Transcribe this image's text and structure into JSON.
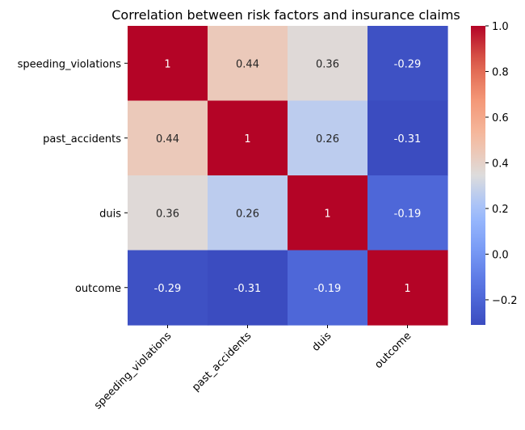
{
  "chart_data": {
    "type": "heatmap",
    "title": "Correlation between risk factors and insurance claims",
    "xlabel": "",
    "ylabel": "",
    "row_labels": [
      "speeding_violations",
      "past_accidents",
      "duis",
      "outcome"
    ],
    "col_labels": [
      "speeding_violations",
      "past_accidents",
      "duis",
      "outcome"
    ],
    "values": [
      [
        1,
        0.44,
        0.36,
        -0.29
      ],
      [
        0.44,
        1,
        0.26,
        -0.31
      ],
      [
        0.36,
        0.26,
        1,
        -0.19
      ],
      [
        -0.29,
        -0.31,
        -0.19,
        1
      ]
    ],
    "annotations": [
      [
        "1",
        "0.44",
        "0.36",
        "-0.29"
      ],
      [
        "0.44",
        "1",
        "0.26",
        "-0.31"
      ],
      [
        "0.36",
        "0.26",
        "1",
        "-0.19"
      ],
      [
        "-0.29",
        "-0.31",
        "-0.19",
        "1"
      ]
    ],
    "colormap": "coolwarm",
    "color_range": [
      -0.31,
      1.0
    ],
    "colorbar_ticks": [
      -0.2,
      0.0,
      0.2,
      0.4,
      0.6,
      0.8,
      1.0
    ],
    "colorbar_tick_labels": [
      "−0.2",
      "0.0",
      "0.2",
      "0.4",
      "0.6",
      "0.8",
      "1.0"
    ]
  }
}
